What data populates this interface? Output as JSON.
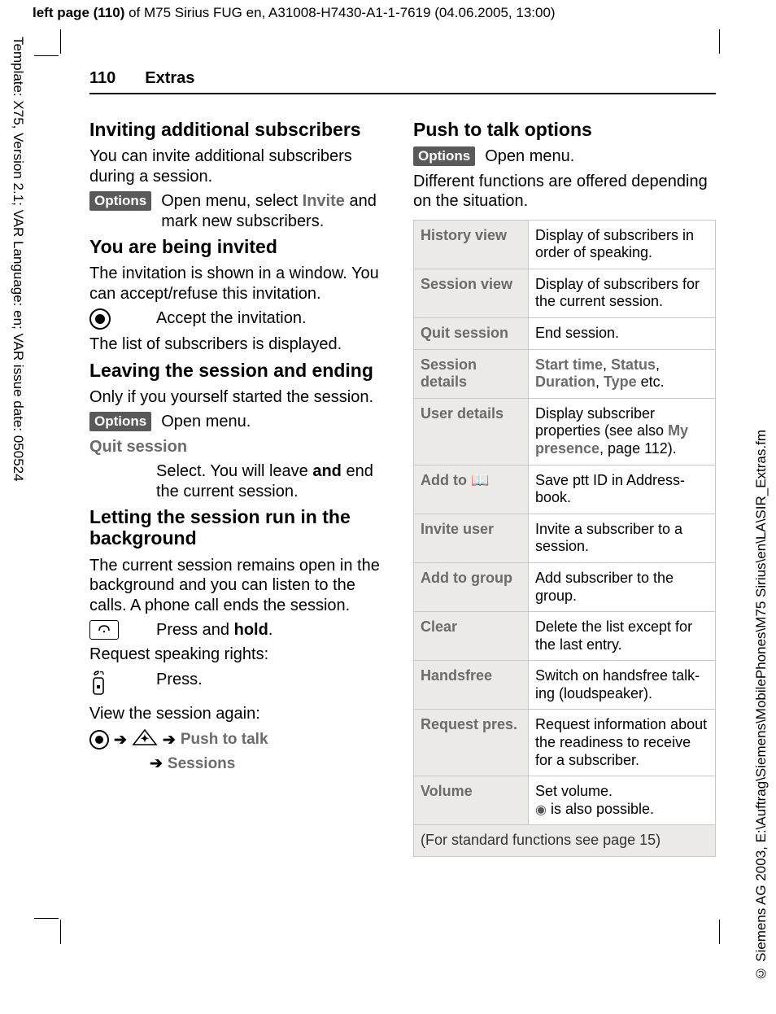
{
  "meta": {
    "top_line_prefix": "left page (110)",
    "top_line_rest": " of M75 Sirius FUG en, A31008-H7430-A1-1-7619 (04.06.2005, 13:00)",
    "left_vertical": "Template: X75, Version 2.1; VAR Language: en; VAR issue date: 050524",
    "right_vertical": "© Siemens AG 2003, E:\\Auftrag\\Siemens\\MobilePhones\\M75 Sirius\\en\\LA\\SIR_Extras.fm"
  },
  "header": {
    "page_number": "110",
    "section": "Extras"
  },
  "left": {
    "h_invite": "Inviting additional subscribers",
    "p_invite": "You can invite additional subscribers during a session.",
    "options_label": "Options",
    "invite_action_pre": "Open menu, select ",
    "invite_action_bold": "Invite",
    "invite_action_post": " and mark new subscribers.",
    "h_invited": "You are being invited",
    "p_invited": "The invitation is shown in a window. You can accept/refuse this invitation.",
    "accept": "Accept the invitation.",
    "p_list": "The list of subscribers is displayed.",
    "h_leave": "Leaving the session and ending",
    "p_leave": "Only if you yourself started the session.",
    "open_menu": "Open menu.",
    "quit_session_lbl": "Quit session",
    "quit_text_pre": "Select. You will leave ",
    "quit_text_bold": "and",
    "quit_text_post": " end the current session.",
    "h_bg": "Letting the session run in the background",
    "p_bg": "The current session remains open in the background and you can listen to the calls. A phone call ends the session.",
    "press_hold_pre": "Press and ",
    "press_hold_bold": "hold",
    "press_hold_post": ".",
    "req_rights": "Request speaking rights:",
    "press": "Press.",
    "view_again": "View the session again:",
    "nav_ptt": "Push to talk",
    "nav_sessions": "Sessions"
  },
  "right": {
    "h_ptt": "Push to talk options",
    "options_label": "Options",
    "open_menu": "Open menu.",
    "p_diff": "Different functions are offered depending on the situation.",
    "table": {
      "rows": [
        {
          "k": "History view",
          "v": "Display of subscribers in order of speaking."
        },
        {
          "k": "Session view",
          "v": "Display of subscribers for the current session."
        },
        {
          "k": "Quit session",
          "v": "End session."
        },
        {
          "k": "Session details",
          "v_html": "<span class='bold' style='color:#6b6b6b'>Start time</span>, <span class='bold' style='color:#6b6b6b'>Status</span>, <span class='bold' style='color:#6b6b6b'>Duration</span>, <span class='bold' style='color:#6b6b6b'>Type</span> etc."
        },
        {
          "k": "User details",
          "v_html": "Display subscriber properties (see also <span class='bold' style='color:#6b6b6b'>My presence</span>, page 112)."
        },
        {
          "k_html": "Add to <span class='book-icon'>📖</span>",
          "v": "Save ptt ID in Address-book."
        },
        {
          "k": "Invite user",
          "v": "Invite a subscriber to a session."
        },
        {
          "k": "Add to group",
          "v": "Add subscriber to the group."
        },
        {
          "k": "Clear",
          "v": "Delete the list except for the last entry."
        },
        {
          "k": "Handsfree",
          "v": "Switch on handsfree talk-ing (loudspeaker)."
        },
        {
          "k": "Request pres.",
          "v": "Request information about the readiness to receive for a subscriber."
        },
        {
          "k": "Volume",
          "v_html": "Set volume.<br><span class='joy'>◉</span> is also possible."
        }
      ],
      "footer": "(For standard functions see page 15)"
    }
  },
  "colors": {
    "badge_bg": "#5a5a5a",
    "table_head_bg": "#eceae6",
    "grey_text": "#6b6b6b",
    "border": "#c8c8c8"
  }
}
